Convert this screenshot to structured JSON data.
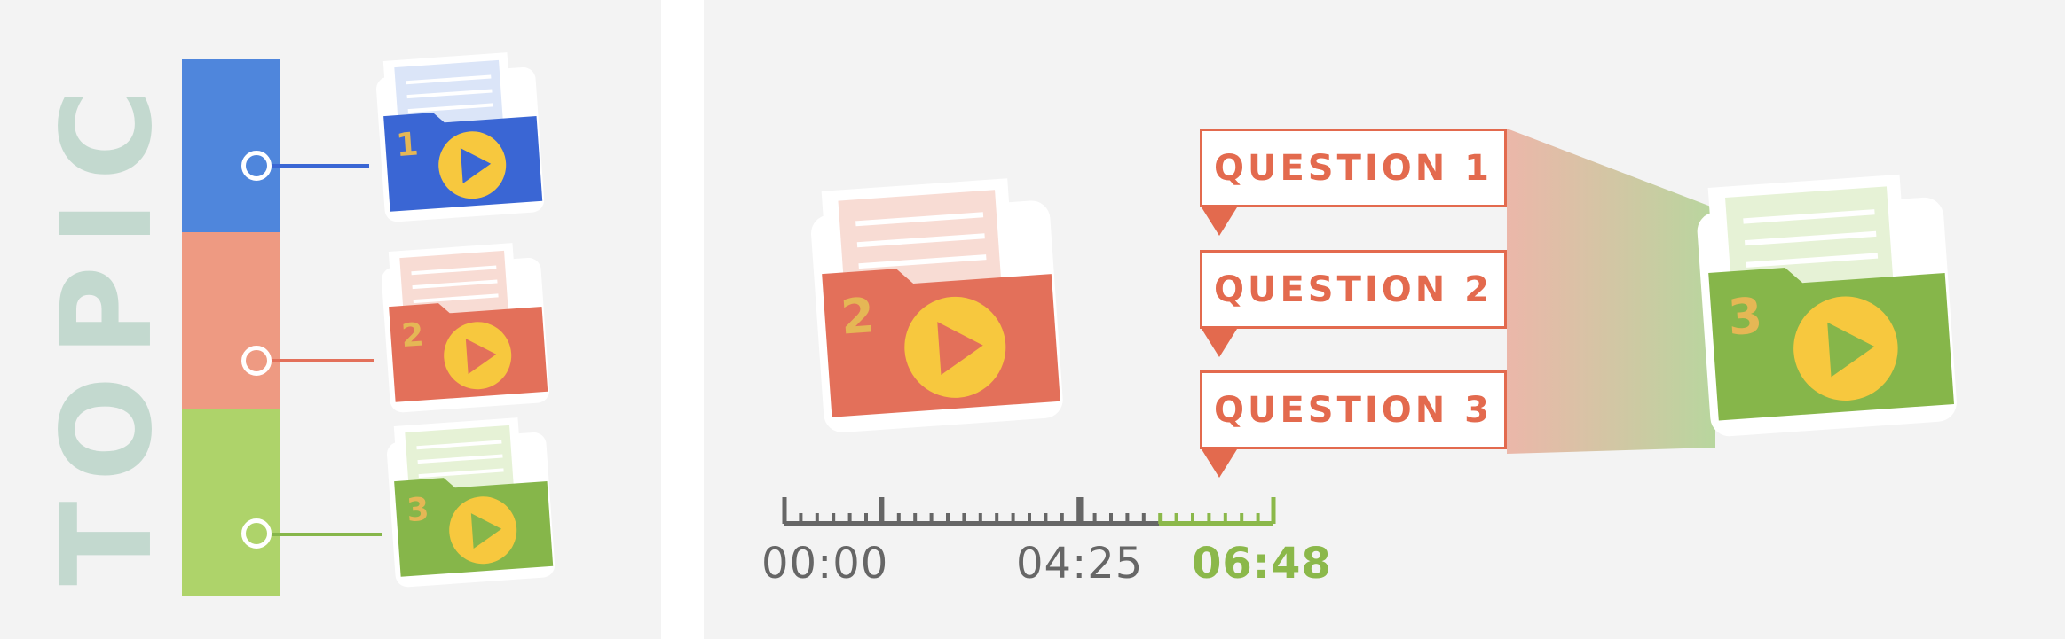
{
  "topic": {
    "title": "TOPIC"
  },
  "topic_items": [
    {
      "number": "1",
      "color": "#3a66d4",
      "band_color": "#4f86dc"
    },
    {
      "number": "2",
      "color": "#e3705a",
      "band_color": "#ee9a82"
    },
    {
      "number": "3",
      "color": "#86b64a",
      "band_color": "#aed36a"
    }
  ],
  "featured_folder": {
    "number": "2",
    "color": "#e3705a"
  },
  "questions": [
    {
      "label": "QUESTION 1"
    },
    {
      "label": "QUESTION 2"
    },
    {
      "label": "QUESTION 3"
    }
  ],
  "zoom_folder": {
    "number": "3",
    "color": "#86b64a"
  },
  "timeline": {
    "start_label": "00:00",
    "marker_label": "04:25",
    "end_label": "06:48",
    "base_color": "#666666",
    "accent_color": "#8bb84a"
  },
  "colors": {
    "accent_orange": "#e36a4e",
    "play_yellow": "#f7c83e",
    "number_gold": "#e5b755"
  },
  "icons": {
    "folder": "folder-play-icon",
    "play": "play-icon",
    "node": "node-ring-icon",
    "pointer": "pointer-triangle-icon"
  }
}
